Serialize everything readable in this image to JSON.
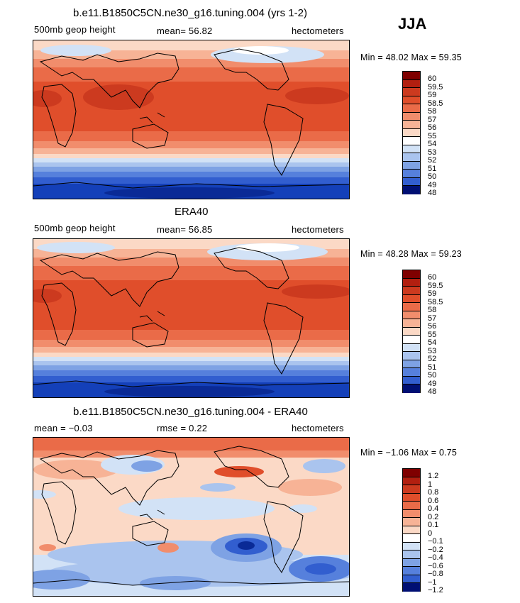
{
  "season": "JJA",
  "panels": [
    {
      "title": "b.e11.B1850C5CN.ne30_g16.tuning.004 (yrs 1-2)",
      "left_label": "500mb geop height",
      "center_label": "mean=  56.82",
      "units": "hectometers",
      "minmax": "Min =  48.02  Max =  59.35",
      "colorbar_labels": [
        "60",
        "59.5",
        "59",
        "58.5",
        "58",
        "57",
        "56",
        "55",
        "54",
        "53",
        "52",
        "51",
        "50",
        "49",
        "48"
      ]
    },
    {
      "title": "ERA40",
      "left_label": "500mb geop height",
      "center_label": "mean=  56.85",
      "units": "hectometers",
      "minmax": "Min =  48.28  Max =  59.23",
      "colorbar_labels": [
        "60",
        "59.5",
        "59",
        "58.5",
        "58",
        "57",
        "56",
        "55",
        "54",
        "53",
        "52",
        "51",
        "50",
        "49",
        "48"
      ]
    },
    {
      "title": "b.e11.B1850C5CN.ne30_g16.tuning.004 - ERA40",
      "left_label": "mean =  −0.03",
      "center_label": "rmse =   0.22",
      "units": "hectometers",
      "minmax": "Min =  −1.06  Max =   0.75",
      "colorbar_labels": [
        "1.2",
        "1",
        "0.8",
        "0.6",
        "0.4",
        "0.2",
        "0.1",
        "0",
        "−0.1",
        "−0.2",
        "−0.4",
        "−0.6",
        "−0.8",
        "−1",
        "−1.2"
      ]
    }
  ],
  "colors": {
    "palette": [
      "#7f0000",
      "#b21f10",
      "#cc3a1f",
      "#e04e2b",
      "#ea6b48",
      "#f18d6c",
      "#f7b396",
      "#fbd9c6",
      "#ffffff",
      "#d2e2f6",
      "#aac4ee",
      "#7ea2e4",
      "#5680dc",
      "#325ecf",
      "#1440b9",
      "#0a2a96",
      "#000f73"
    ],
    "land_outline": "#000000"
  }
}
